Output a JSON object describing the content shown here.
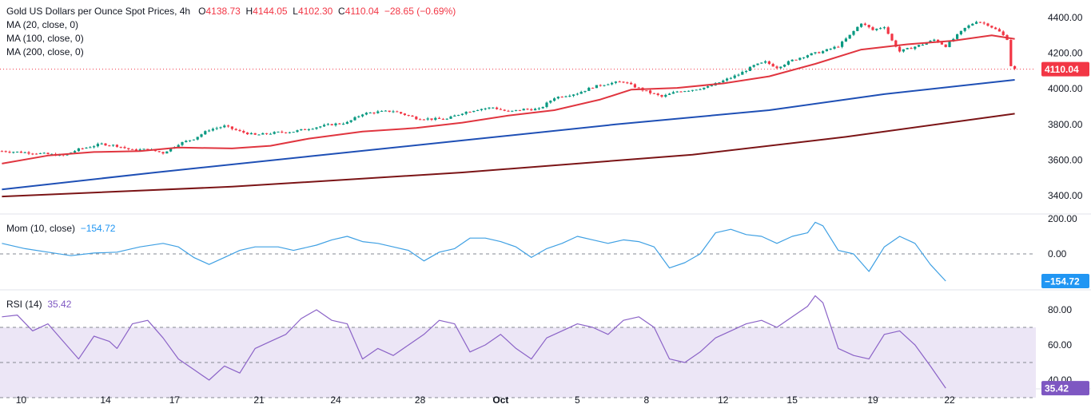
{
  "header": {
    "title": "Gold US Dollars per Ounce Spot Prices, 4h",
    "open_label": "O",
    "open": "4138.73",
    "high_label": "H",
    "high": "4144.05",
    "low_label": "L",
    "low": "4102.30",
    "close_label": "C",
    "close": "4110.04",
    "change": "−28.65 (−0.69%)",
    "ma_labels": [
      "MA (20, close, 0)",
      "MA (100, close, 0)",
      "MA (200, close, 0)"
    ]
  },
  "colors": {
    "up": "#089981",
    "down": "#f23645",
    "ma20": "#e0353f",
    "ma100": "#1e4fb5",
    "ma200": "#7b1416",
    "mom": "#3fa0e3",
    "rsi": "#8b63c7",
    "rsi_fill": "#ece6f6",
    "price_tag": "#f23645",
    "mom_tag": "#2196f3",
    "rsi_tag": "#7e57c2"
  },
  "chart_data": [
    {
      "type": "candlestick",
      "title": "Gold US Dollars per Ounce Spot Prices, 4h",
      "x_ticks": [
        "10",
        "14",
        "17",
        "21",
        "24",
        "28",
        "Oct",
        "5",
        "8",
        "12",
        "15",
        "19",
        "22"
      ],
      "ylim": [
        3300,
        4450
      ],
      "y_ticks": [
        3400,
        3600,
        3800,
        4000,
        4200,
        4400
      ],
      "last_price": 4110.04,
      "last_price_label": "4110.04",
      "close_path": [
        [
          0,
          3650
        ],
        [
          8,
          3640
        ],
        [
          16,
          3625
        ],
        [
          20,
          3660
        ],
        [
          26,
          3690
        ],
        [
          30,
          3680
        ],
        [
          34,
          3655
        ],
        [
          38,
          3660
        ],
        [
          42,
          3640
        ],
        [
          46,
          3690
        ],
        [
          50,
          3720
        ],
        [
          54,
          3770
        ],
        [
          58,
          3790
        ],
        [
          62,
          3760
        ],
        [
          66,
          3740
        ],
        [
          72,
          3755
        ],
        [
          76,
          3760
        ],
        [
          82,
          3785
        ],
        [
          86,
          3800
        ],
        [
          90,
          3810
        ],
        [
          94,
          3860
        ],
        [
          98,
          3870
        ],
        [
          102,
          3875
        ],
        [
          108,
          3835
        ],
        [
          112,
          3830
        ],
        [
          116,
          3830
        ],
        [
          120,
          3865
        ],
        [
          124,
          3885
        ],
        [
          128,
          3895
        ],
        [
          132,
          3870
        ],
        [
          136,
          3885
        ],
        [
          140,
          3885
        ],
        [
          144,
          3950
        ],
        [
          150,
          3975
        ],
        [
          154,
          4010
        ],
        [
          158,
          4030
        ],
        [
          162,
          4040
        ],
        [
          164,
          4020
        ],
        [
          168,
          3985
        ],
        [
          172,
          3955
        ],
        [
          176,
          3985
        ],
        [
          180,
          3995
        ],
        [
          184,
          4010
        ],
        [
          188,
          4045
        ],
        [
          192,
          4080
        ],
        [
          196,
          4130
        ],
        [
          199,
          4150
        ],
        [
          202,
          4120
        ],
        [
          206,
          4160
        ],
        [
          210,
          4190
        ],
        [
          214,
          4210
        ],
        [
          218,
          4240
        ],
        [
          221,
          4300
        ],
        [
          224,
          4370
        ],
        [
          227,
          4330
        ],
        [
          230,
          4350
        ],
        [
          232,
          4270
        ],
        [
          234,
          4210
        ],
        [
          237,
          4230
        ],
        [
          240,
          4250
        ],
        [
          243,
          4275
        ],
        [
          246,
          4240
        ],
        [
          248,
          4280
        ],
        [
          251,
          4340
        ],
        [
          254,
          4380
        ],
        [
          257,
          4360
        ],
        [
          260,
          4320
        ],
        [
          262,
          4280
        ],
        [
          263,
          4130
        ],
        [
          264,
          4110
        ]
      ],
      "ma20_path": [
        [
          0,
          3580
        ],
        [
          12,
          3625
        ],
        [
          24,
          3645
        ],
        [
          36,
          3650
        ],
        [
          46,
          3670
        ],
        [
          60,
          3665
        ],
        [
          70,
          3680
        ],
        [
          80,
          3720
        ],
        [
          94,
          3760
        ],
        [
          108,
          3780
        ],
        [
          120,
          3810
        ],
        [
          132,
          3850
        ],
        [
          144,
          3880
        ],
        [
          156,
          3940
        ],
        [
          164,
          3995
        ],
        [
          176,
          4005
        ],
        [
          188,
          4030
        ],
        [
          200,
          4070
        ],
        [
          212,
          4140
        ],
        [
          224,
          4220
        ],
        [
          236,
          4250
        ],
        [
          248,
          4270
        ],
        [
          258,
          4300
        ],
        [
          264,
          4280
        ]
      ],
      "ma100_path": [
        [
          0,
          3435
        ],
        [
          40,
          3530
        ],
        [
          80,
          3620
        ],
        [
          120,
          3710
        ],
        [
          160,
          3800
        ],
        [
          200,
          3880
        ],
        [
          230,
          3970
        ],
        [
          264,
          4050
        ]
      ],
      "ma200_path": [
        [
          0,
          3395
        ],
        [
          60,
          3450
        ],
        [
          120,
          3530
        ],
        [
          180,
          3630
        ],
        [
          220,
          3730
        ],
        [
          264,
          3860
        ]
      ],
      "series": [
        {
          "name": "MA (20, close, 0)"
        },
        {
          "name": "MA (100, close, 0)"
        },
        {
          "name": "MA (200, close, 0)"
        }
      ]
    },
    {
      "type": "line",
      "title": "Mom (10, close)",
      "ylim": [
        -200,
        235
      ],
      "y_ticks": [
        0,
        200
      ],
      "y_tick_labels": [
        "0.00",
        "200.00"
      ],
      "last_value_label": "−154.72",
      "last_value": -154.72,
      "points": [
        [
          0,
          60
        ],
        [
          6,
          30
        ],
        [
          12,
          10
        ],
        [
          18,
          -10
        ],
        [
          24,
          5
        ],
        [
          30,
          10
        ],
        [
          36,
          40
        ],
        [
          42,
          60
        ],
        [
          46,
          40
        ],
        [
          50,
          -20
        ],
        [
          54,
          -60
        ],
        [
          58,
          -20
        ],
        [
          62,
          20
        ],
        [
          66,
          40
        ],
        [
          72,
          40
        ],
        [
          76,
          20
        ],
        [
          82,
          50
        ],
        [
          86,
          80
        ],
        [
          90,
          100
        ],
        [
          94,
          70
        ],
        [
          98,
          60
        ],
        [
          102,
          40
        ],
        [
          106,
          20
        ],
        [
          110,
          -40
        ],
        [
          114,
          10
        ],
        [
          118,
          30
        ],
        [
          122,
          90
        ],
        [
          126,
          90
        ],
        [
          130,
          70
        ],
        [
          134,
          40
        ],
        [
          138,
          -20
        ],
        [
          142,
          30
        ],
        [
          146,
          60
        ],
        [
          150,
          100
        ],
        [
          154,
          80
        ],
        [
          158,
          60
        ],
        [
          162,
          80
        ],
        [
          166,
          70
        ],
        [
          170,
          40
        ],
        [
          174,
          -80
        ],
        [
          178,
          -50
        ],
        [
          182,
          0
        ],
        [
          186,
          120
        ],
        [
          190,
          140
        ],
        [
          194,
          110
        ],
        [
          198,
          100
        ],
        [
          202,
          60
        ],
        [
          206,
          100
        ],
        [
          210,
          120
        ],
        [
          212,
          180
        ],
        [
          214,
          160
        ],
        [
          218,
          20
        ],
        [
          222,
          0
        ],
        [
          226,
          -100
        ],
        [
          230,
          40
        ],
        [
          234,
          100
        ],
        [
          238,
          60
        ],
        [
          242,
          -60
        ],
        [
          246,
          -154.72
        ]
      ]
    },
    {
      "type": "line",
      "title": "RSI (14)",
      "ylim": [
        20,
        92
      ],
      "y_ticks": [
        40,
        60,
        80
      ],
      "y_tick_labels": [
        "40.00",
        "60.00",
        "80.00"
      ],
      "band": [
        30,
        70
      ],
      "mid": 50,
      "last_value_label": "35.42",
      "last_value": 35.42,
      "points": [
        [
          0,
          76
        ],
        [
          4,
          77
        ],
        [
          8,
          68
        ],
        [
          12,
          72
        ],
        [
          16,
          62
        ],
        [
          20,
          52
        ],
        [
          24,
          65
        ],
        [
          28,
          62
        ],
        [
          30,
          58
        ],
        [
          34,
          72
        ],
        [
          38,
          74
        ],
        [
          42,
          64
        ],
        [
          46,
          52
        ],
        [
          50,
          46
        ],
        [
          54,
          40
        ],
        [
          58,
          48
        ],
        [
          62,
          44
        ],
        [
          66,
          58
        ],
        [
          70,
          62
        ],
        [
          74,
          66
        ],
        [
          78,
          75
        ],
        [
          82,
          80
        ],
        [
          86,
          74
        ],
        [
          90,
          72
        ],
        [
          94,
          52
        ],
        [
          98,
          58
        ],
        [
          102,
          54
        ],
        [
          106,
          60
        ],
        [
          110,
          66
        ],
        [
          114,
          74
        ],
        [
          118,
          72
        ],
        [
          122,
          56
        ],
        [
          126,
          60
        ],
        [
          130,
          66
        ],
        [
          134,
          58
        ],
        [
          138,
          52
        ],
        [
          142,
          64
        ],
        [
          146,
          68
        ],
        [
          150,
          72
        ],
        [
          154,
          70
        ],
        [
          158,
          66
        ],
        [
          162,
          74
        ],
        [
          166,
          76
        ],
        [
          170,
          70
        ],
        [
          174,
          52
        ],
        [
          178,
          50
        ],
        [
          182,
          56
        ],
        [
          186,
          64
        ],
        [
          190,
          68
        ],
        [
          194,
          72
        ],
        [
          198,
          74
        ],
        [
          202,
          70
        ],
        [
          206,
          76
        ],
        [
          210,
          82
        ],
        [
          212,
          88
        ],
        [
          214,
          84
        ],
        [
          218,
          58
        ],
        [
          222,
          54
        ],
        [
          226,
          52
        ],
        [
          230,
          66
        ],
        [
          234,
          68
        ],
        [
          238,
          60
        ],
        [
          242,
          48
        ],
        [
          246,
          35.42
        ]
      ]
    }
  ]
}
